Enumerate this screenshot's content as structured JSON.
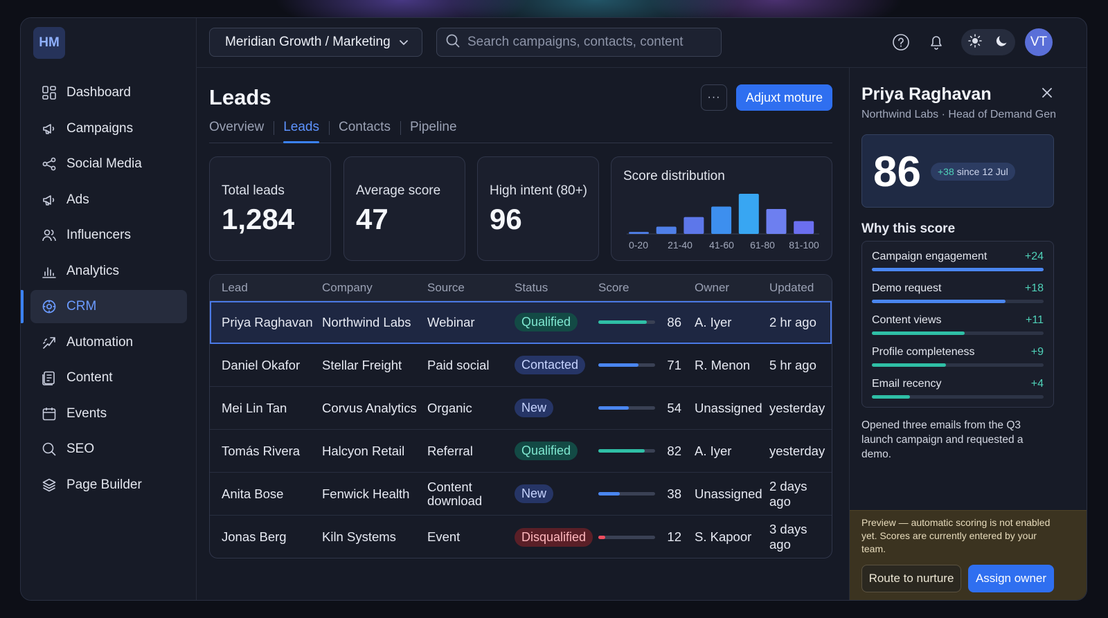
{
  "app": {
    "logo": "HM",
    "workspace": "Meridian Growth / Marketing",
    "search_placeholder": "Search campaigns, contacts, content",
    "user_initials": "VT",
    "accent": "#2f6ff0"
  },
  "sidebar": {
    "items": [
      {
        "label": "Dashboard",
        "icon": "grid-icon"
      },
      {
        "label": "Campaigns",
        "icon": "megaphone-icon"
      },
      {
        "label": "Social Media",
        "icon": "share-icon"
      },
      {
        "label": "Ads",
        "icon": "megaphone-icon"
      },
      {
        "label": "Influencers",
        "icon": "users-icon"
      },
      {
        "label": "Analytics",
        "icon": "bar-chart-icon"
      },
      {
        "label": "CRM",
        "icon": "target-icon",
        "active": true
      },
      {
        "label": "Automation",
        "icon": "automation-icon"
      },
      {
        "label": "Content",
        "icon": "document-icon"
      },
      {
        "label": "Events",
        "icon": "calendar-icon"
      },
      {
        "label": "SEO",
        "icon": "search-icon"
      },
      {
        "label": "Page Builder",
        "icon": "layers-icon"
      }
    ]
  },
  "main": {
    "title": "Leads",
    "more_label": "···",
    "primary_action": "Adjuxt moture",
    "tabs": [
      "Overview",
      "Leads",
      "Contacts",
      "Pipeline"
    ],
    "active_tab": "Leads",
    "stats": [
      {
        "label": "Total leads",
        "value": "1,284"
      },
      {
        "label": "Average score",
        "value": "47"
      },
      {
        "label": "High intent (80+)",
        "value": "96"
      }
    ],
    "distribution": {
      "title": "Score distribution",
      "buckets": [
        "0-20",
        "21-40",
        "41-60",
        "61-80",
        "81-100"
      ],
      "bar_levels": [
        0.05,
        0.18,
        0.42,
        0.68,
        1.0,
        0.62,
        0.32
      ]
    }
  },
  "table": {
    "columns": [
      "Lead",
      "Company",
      "Source",
      "Status",
      "Score",
      "Owner",
      "Updated"
    ],
    "rows": [
      {
        "lead": "Priya Raghavan",
        "company": "Northwind Labs",
        "source": "Webinar",
        "status": "Qualified",
        "status_kind": "qualified",
        "score": "86",
        "owner": "A. Iyer",
        "updated": "2 hr ago",
        "selected": true
      },
      {
        "lead": "Daniel Okafor",
        "company": "Stellar Freight",
        "source": "Paid social",
        "status": "Contacted",
        "status_kind": "contacted",
        "score": "71",
        "owner": "R. Menon",
        "updated": "5 hr ago"
      },
      {
        "lead": "Mei Lin Tan",
        "company": "Corvus Analytics",
        "source": "Organic",
        "status": "New",
        "status_kind": "new",
        "score": "54",
        "owner": "Unassigned",
        "updated": "yesterday"
      },
      {
        "lead": "Tomás Rivera",
        "company": "Halcyon Retail",
        "source": "Referral",
        "status": "Qualified",
        "status_kind": "qualified",
        "score": "82",
        "owner": "A. Iyer",
        "updated": "yesterday"
      },
      {
        "lead": "Anita Bose",
        "company": "Fenwick Health",
        "source": "Content download",
        "status": "New",
        "status_kind": "new",
        "score": "38",
        "owner": "Unassigned",
        "updated": "2 days ago"
      },
      {
        "lead": "Jonas Berg",
        "company": "Kiln Systems",
        "source": "Event",
        "status": "Disqualified",
        "status_kind": "disqualified",
        "score": "12",
        "owner": "S. Kapoor",
        "updated": "3 days ago"
      }
    ]
  },
  "panel": {
    "name": "Priya Raghavan",
    "subtitle": "Northwind Labs · Head of Demand Gen",
    "score": "86",
    "delta": "+38",
    "delta_suffix": "since 12 Jul",
    "why_title": "Why this score",
    "factors": [
      {
        "label": "Campaign engagement",
        "value": "+24",
        "fraction": 1.0,
        "color": "#4a86f0"
      },
      {
        "label": "Demo request",
        "value": "+18",
        "fraction": 0.78,
        "color": "#4a86f0"
      },
      {
        "label": "Content views",
        "value": "+11",
        "fraction": 0.54,
        "color": "#2fbfa6"
      },
      {
        "label": "Profile completeness",
        "value": "+9",
        "fraction": 0.43,
        "color": "#2fbfa6"
      },
      {
        "label": "Email recency",
        "value": "+4",
        "fraction": 0.22,
        "color": "#2fbfa6"
      }
    ],
    "note": "Opened three emails from the Q3 launch campaign and requested a demo.",
    "warning": "Preview — automatic scoring is not enabled yet. Scores are currently entered by your team.",
    "secondary_action": "Route to nurture",
    "primary_action": "Assign owner"
  }
}
